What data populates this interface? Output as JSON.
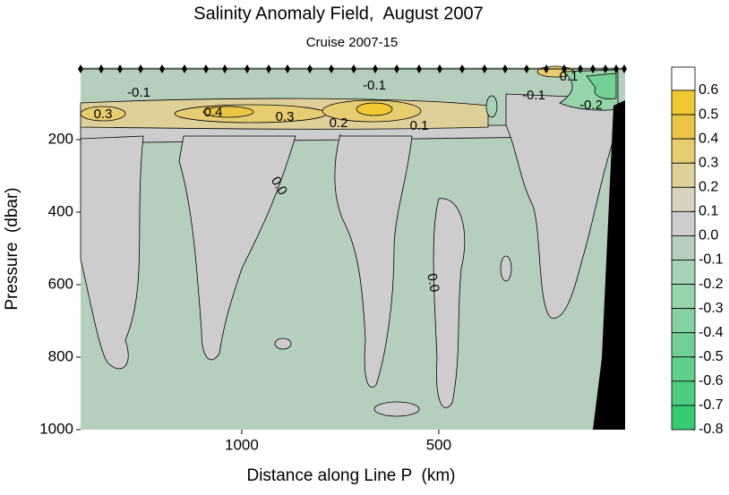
{
  "chart_data": {
    "type": "contour",
    "title": "Salinity Anomaly Field,  August 2007",
    "subtitle": "Cruise 2007-15",
    "x_label": "Distance along Line P  (km)",
    "y_label": "Pressure  (dbar)",
    "xlim": [
      1409,
      27
    ],
    "xticks": [
      1000,
      500
    ],
    "ylim": [
      0,
      1000
    ],
    "y_inverted": true,
    "yticks": [
      200,
      400,
      600,
      800,
      1000
    ],
    "colorbar": {
      "levels": [
        0.6,
        0.5,
        0.4,
        0.3,
        0.2,
        0.1,
        {
          "value": 0,
          "label": "0.0"
        },
        -0.1,
        -0.2,
        -0.3,
        -0.4,
        -0.5,
        -0.6,
        -0.7,
        -0.8
      ],
      "colors": [
        "#ffffff",
        "#f2c832",
        "#ebc446",
        "#e6cd72",
        "#dfd09a",
        "#d8d2be",
        "#cdcdcd",
        "#b6cfbd",
        "#a6d3b5",
        "#96d4ac",
        "#84d2a1",
        "#72d096",
        "#60cf8b",
        "#4ccd7f",
        "#35cb70"
      ]
    },
    "contour_labels": [
      "-0.1",
      "-0.1",
      "0.3",
      "0.4",
      "0.3",
      "0.2",
      "0.1",
      "-0.1",
      "-0.2",
      "0.1",
      "0.0",
      "0.0"
    ]
  }
}
